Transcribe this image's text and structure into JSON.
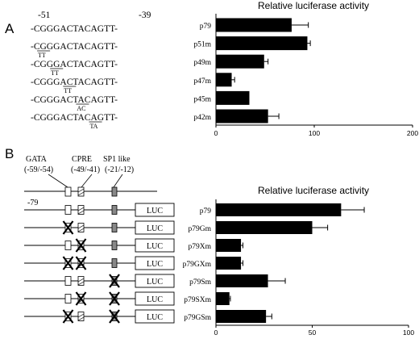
{
  "panel_a": {
    "letter": "A",
    "pos_start": "-51",
    "pos_end": "-39",
    "sequences": [
      {
        "text": "-CGGGACTACAGTT-",
        "under": "",
        "mutant_start": -1
      },
      {
        "text": "-CGGGACTACAGTT-",
        "under": "TT",
        "mutant_start": 1
      },
      {
        "text": "-CGGGACTACAGTT-",
        "under": "TT",
        "mutant_start": 3
      },
      {
        "text": "-CGGGACTACAGTT-",
        "under": "TT",
        "mutant_start": 5
      },
      {
        "text": "-CGGGACTACAGTT-",
        "under": "AC",
        "mutant_start": 7
      },
      {
        "text": "-CGGGACTACAGTT-",
        "under": "TA",
        "mutant_start": 9
      }
    ]
  },
  "panel_b": {
    "letter": "B",
    "elements": [
      {
        "name": "GATA",
        "range": "(-59/-54)"
      },
      {
        "name": "CPRE",
        "range": "(-49/-41)"
      },
      {
        "name": "SP1 like",
        "range": "(-21/-12)"
      }
    ],
    "start_pos": "-79",
    "reporter": "LUC",
    "constructs": [
      {
        "gata": false,
        "cpre": false,
        "sp1": false
      },
      {
        "gata": true,
        "cpre": false,
        "sp1": false
      },
      {
        "gata": false,
        "cpre": true,
        "sp1": false
      },
      {
        "gata": true,
        "cpre": true,
        "sp1": false
      },
      {
        "gata": false,
        "cpre": false,
        "sp1": true
      },
      {
        "gata": false,
        "cpre": true,
        "sp1": true
      },
      {
        "gata": true,
        "cpre": false,
        "sp1": true
      }
    ]
  },
  "chart_data": [
    {
      "type": "bar",
      "orientation": "horizontal",
      "title": "Relative luciferase activity",
      "categories": [
        "p79",
        "p51m",
        "p49m",
        "p47m",
        "p45m",
        "p42m"
      ],
      "values": [
        77,
        93,
        49,
        16,
        34,
        53
      ],
      "errors": [
        17,
        3,
        4,
        3,
        0,
        11
      ],
      "xlim": [
        0,
        200
      ],
      "xticks": [
        0,
        100,
        200
      ]
    },
    {
      "type": "bar",
      "orientation": "horizontal",
      "title": "Relative luciferase activity",
      "categories": [
        "p79",
        "p79Gm",
        "p79Xm",
        "p79GXm",
        "p79Sm",
        "p79SXm",
        "p79GSm"
      ],
      "values": [
        65,
        50,
        13,
        13,
        27,
        7,
        26
      ],
      "errors": [
        12,
        8,
        1,
        1,
        9,
        0.5,
        3
      ],
      "xlim": [
        0,
        100
      ],
      "xticks": [
        0,
        50,
        100
      ]
    }
  ]
}
